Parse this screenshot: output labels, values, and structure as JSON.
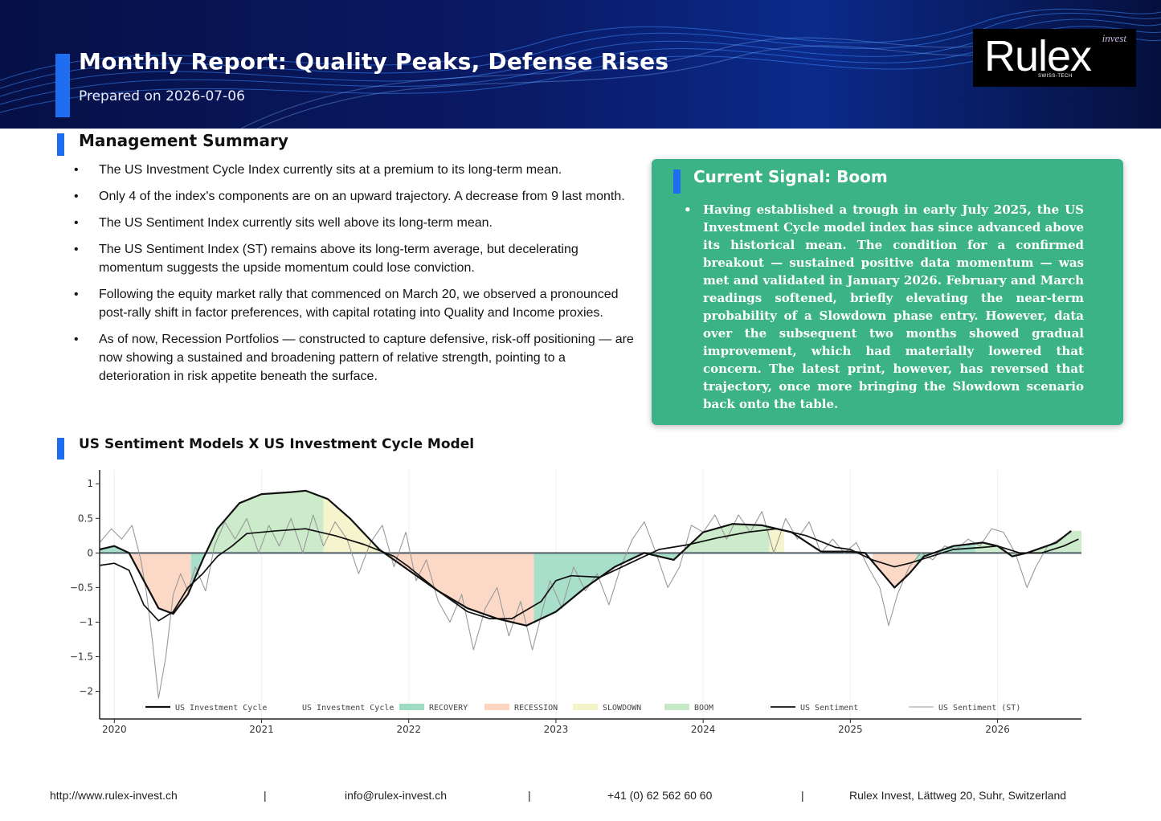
{
  "header": {
    "title": "Monthly Report: Quality Peaks, Defense Rises",
    "date": "Prepared on 2026-07-06",
    "logo": {
      "word": "Rulex",
      "tag": "invest",
      "sub": "SWISS-TECH"
    }
  },
  "summary": {
    "title": "Management Summary",
    "items": [
      "The US Investment Cycle Index currently sits at a premium to its long-term mean.",
      "Only 4 of the index's components are on an upward trajectory. A decrease from 9 last month.",
      "The US Sentiment Index currently sits well above its long-term mean.",
      "The US Sentiment Index (ST) remains above its long-term average, but decelerating momentum suggests the upside momentum could lose conviction.",
      "Following the equity market rally that commenced on March 20, we observed a pronounced post-rally shift in factor preferences, with capital rotating into Quality and Income proxies.",
      "As of now, Recession Portfolios — constructed to capture defensive, risk-off positioning — are now showing a sustained and broadening pattern of relative strength, pointing to a deterioration in risk appetite beneath the surface."
    ]
  },
  "signal": {
    "title": "Current Signal: Boom",
    "text": "Having established a trough in early July 2025, the US Investment Cycle model index has since advanced above its historical mean. The condition for a confirmed breakout — sustained positive data momentum — was met and validated in January 2026. February and March readings softened, briefly elevating the near-term probability of a Slowdown phase entry. However, data over the subsequent two months showed gradual improvement, which had materially lowered that concern. The latest print, however, has reversed that trajectory, once more bringing the Slowdown scenario back onto the table."
  },
  "chart_section": {
    "title": "US Sentiment Models X US Investment Cycle Model"
  },
  "colors": {
    "recovery": "#9fdcc4",
    "recession": "#fcd5c1",
    "slowdown": "#f4f3c8",
    "boom": "#c5e9c5",
    "accent": "#1f6df0",
    "signal_bg": "#3bb387"
  },
  "chart_data": {
    "type": "line",
    "xlabel": "",
    "ylabel": "",
    "xlim": [
      2019.9,
      2026.57
    ],
    "ylim": [
      -2.4,
      1.2
    ],
    "x_ticks": [
      2020,
      2021,
      2022,
      2023,
      2024,
      2025,
      2026
    ],
    "y_ticks": [
      1,
      0.5,
      0,
      -0.5,
      -1,
      -1.5,
      -2
    ],
    "y_tick_labels": [
      "1",
      "0.5",
      "0",
      "−0.5",
      "−1",
      "−1.5",
      "−2"
    ],
    "legend": [
      "US Investment Cycle",
      "US Investment Cycle",
      "RECOVERY",
      "RECESSION",
      "SLOWDOWN",
      "BOOM",
      "US Sentiment",
      "US Sentiment (ST)"
    ],
    "legend_position": "bottom",
    "regimes": [
      {
        "phase": "recovery",
        "start": 2019.9,
        "end": 2020.08
      },
      {
        "phase": "recession",
        "start": 2020.08,
        "end": 2020.52
      },
      {
        "phase": "recovery",
        "start": 2020.52,
        "end": 2020.62
      },
      {
        "phase": "boom",
        "start": 2020.62,
        "end": 2021.42
      },
      {
        "phase": "slowdown",
        "start": 2021.42,
        "end": 2021.88
      },
      {
        "phase": "recession",
        "start": 2021.88,
        "end": 2022.85
      },
      {
        "phase": "recovery",
        "start": 2022.85,
        "end": 2023.85
      },
      {
        "phase": "boom",
        "start": 2023.85,
        "end": 2024.45
      },
      {
        "phase": "slowdown",
        "start": 2024.45,
        "end": 2024.55
      },
      {
        "phase": "recession",
        "start": 2025.15,
        "end": 2025.45
      },
      {
        "phase": "recovery",
        "start": 2025.45,
        "end": 2025.85
      },
      {
        "phase": "boom",
        "start": 2025.85,
        "end": 2026.57
      }
    ],
    "series": [
      {
        "name": "US Investment Cycle",
        "style": "thick",
        "points": [
          [
            2019.9,
            0.05
          ],
          [
            2020.0,
            0.1
          ],
          [
            2020.1,
            0.0
          ],
          [
            2020.2,
            -0.4
          ],
          [
            2020.3,
            -0.8
          ],
          [
            2020.4,
            -0.88
          ],
          [
            2020.5,
            -0.6
          ],
          [
            2020.6,
            -0.1
          ],
          [
            2020.7,
            0.35
          ],
          [
            2020.85,
            0.72
          ],
          [
            2021.0,
            0.85
          ],
          [
            2021.2,
            0.88
          ],
          [
            2021.3,
            0.9
          ],
          [
            2021.45,
            0.78
          ],
          [
            2021.6,
            0.5
          ],
          [
            2021.8,
            0.05
          ],
          [
            2022.0,
            -0.25
          ],
          [
            2022.2,
            -0.55
          ],
          [
            2022.4,
            -0.8
          ],
          [
            2022.6,
            -0.95
          ],
          [
            2022.8,
            -1.05
          ],
          [
            2023.0,
            -0.85
          ],
          [
            2023.2,
            -0.5
          ],
          [
            2023.4,
            -0.2
          ],
          [
            2023.6,
            0.0
          ],
          [
            2023.8,
            -0.1
          ],
          [
            2024.0,
            0.3
          ],
          [
            2024.2,
            0.42
          ],
          [
            2024.4,
            0.4
          ],
          [
            2024.6,
            0.3
          ],
          [
            2024.8,
            0.02
          ],
          [
            2025.0,
            0.02
          ],
          [
            2025.1,
            0.0
          ],
          [
            2025.2,
            -0.25
          ],
          [
            2025.3,
            -0.5
          ],
          [
            2025.4,
            -0.3
          ],
          [
            2025.5,
            -0.05
          ],
          [
            2025.7,
            0.1
          ],
          [
            2025.9,
            0.15
          ],
          [
            2026.0,
            0.1
          ],
          [
            2026.1,
            -0.05
          ],
          [
            2026.2,
            0.0
          ],
          [
            2026.4,
            0.15
          ],
          [
            2026.5,
            0.32
          ]
        ]
      },
      {
        "name": "US Sentiment",
        "style": "medium",
        "points": [
          [
            2019.9,
            -0.18
          ],
          [
            2020.0,
            -0.15
          ],
          [
            2020.1,
            -0.25
          ],
          [
            2020.2,
            -0.75
          ],
          [
            2020.3,
            -0.98
          ],
          [
            2020.4,
            -0.85
          ],
          [
            2020.5,
            -0.5
          ],
          [
            2020.6,
            -0.3
          ],
          [
            2020.7,
            -0.05
          ],
          [
            2020.8,
            0.1
          ],
          [
            2020.9,
            0.28
          ],
          [
            2021.1,
            0.32
          ],
          [
            2021.3,
            0.35
          ],
          [
            2021.5,
            0.25
          ],
          [
            2021.7,
            0.12
          ],
          [
            2021.9,
            -0.05
          ],
          [
            2022.0,
            -0.2
          ],
          [
            2022.2,
            -0.55
          ],
          [
            2022.4,
            -0.85
          ],
          [
            2022.55,
            -0.95
          ],
          [
            2022.7,
            -0.95
          ],
          [
            2022.9,
            -0.7
          ],
          [
            2023.0,
            -0.4
          ],
          [
            2023.1,
            -0.33
          ],
          [
            2023.3,
            -0.35
          ],
          [
            2023.5,
            -0.15
          ],
          [
            2023.7,
            0.05
          ],
          [
            2023.9,
            0.12
          ],
          [
            2024.1,
            0.22
          ],
          [
            2024.3,
            0.3
          ],
          [
            2024.5,
            0.35
          ],
          [
            2024.7,
            0.25
          ],
          [
            2024.9,
            0.08
          ],
          [
            2025.0,
            0.05
          ],
          [
            2025.15,
            -0.1
          ],
          [
            2025.3,
            -0.2
          ],
          [
            2025.4,
            -0.15
          ],
          [
            2025.55,
            -0.05
          ],
          [
            2025.7,
            0.05
          ],
          [
            2025.9,
            0.08
          ],
          [
            2026.0,
            0.1
          ],
          [
            2026.15,
            0.0
          ],
          [
            2026.3,
            0.0
          ],
          [
            2026.45,
            0.1
          ],
          [
            2026.55,
            0.2
          ]
        ]
      },
      {
        "name": "US Sentiment (ST)",
        "style": "thin",
        "points": [
          [
            2019.9,
            0.15
          ],
          [
            2019.98,
            0.35
          ],
          [
            2020.05,
            0.2
          ],
          [
            2020.12,
            0.4
          ],
          [
            2020.18,
            -0.1
          ],
          [
            2020.22,
            -0.6
          ],
          [
            2020.26,
            -1.3
          ],
          [
            2020.3,
            -2.1
          ],
          [
            2020.35,
            -1.5
          ],
          [
            2020.4,
            -0.6
          ],
          [
            2020.45,
            -0.3
          ],
          [
            2020.5,
            -0.55
          ],
          [
            2020.55,
            -0.2
          ],
          [
            2020.62,
            -0.55
          ],
          [
            2020.68,
            0.1
          ],
          [
            2020.75,
            0.45
          ],
          [
            2020.82,
            0.2
          ],
          [
            2020.9,
            0.5
          ],
          [
            2020.98,
            0.0
          ],
          [
            2021.05,
            0.4
          ],
          [
            2021.12,
            0.1
          ],
          [
            2021.2,
            0.5
          ],
          [
            2021.28,
            0.0
          ],
          [
            2021.35,
            0.55
          ],
          [
            2021.42,
            0.1
          ],
          [
            2021.5,
            0.45
          ],
          [
            2021.58,
            0.2
          ],
          [
            2021.66,
            -0.3
          ],
          [
            2021.74,
            0.15
          ],
          [
            2021.82,
            0.4
          ],
          [
            2021.9,
            -0.2
          ],
          [
            2021.98,
            0.3
          ],
          [
            2022.05,
            -0.4
          ],
          [
            2022.12,
            -0.1
          ],
          [
            2022.2,
            -0.7
          ],
          [
            2022.28,
            -1.0
          ],
          [
            2022.36,
            -0.6
          ],
          [
            2022.44,
            -1.4
          ],
          [
            2022.52,
            -0.8
          ],
          [
            2022.6,
            -0.5
          ],
          [
            2022.68,
            -1.2
          ],
          [
            2022.76,
            -0.7
          ],
          [
            2022.84,
            -1.4
          ],
          [
            2022.9,
            -0.9
          ],
          [
            2022.96,
            -0.4
          ],
          [
            2023.04,
            -0.8
          ],
          [
            2023.12,
            -0.2
          ],
          [
            2023.2,
            -0.55
          ],
          [
            2023.28,
            -0.3
          ],
          [
            2023.36,
            -0.75
          ],
          [
            2023.44,
            -0.2
          ],
          [
            2023.52,
            0.2
          ],
          [
            2023.6,
            0.45
          ],
          [
            2023.68,
            0.0
          ],
          [
            2023.76,
            -0.5
          ],
          [
            2023.84,
            -0.2
          ],
          [
            2023.92,
            0.4
          ],
          [
            2024.0,
            0.3
          ],
          [
            2024.08,
            0.55
          ],
          [
            2024.16,
            0.2
          ],
          [
            2024.24,
            0.55
          ],
          [
            2024.32,
            0.3
          ],
          [
            2024.4,
            0.6
          ],
          [
            2024.48,
            0.0
          ],
          [
            2024.56,
            0.5
          ],
          [
            2024.64,
            0.2
          ],
          [
            2024.72,
            0.45
          ],
          [
            2024.8,
            0.0
          ],
          [
            2024.88,
            0.2
          ],
          [
            2024.96,
            0.0
          ],
          [
            2025.04,
            0.15
          ],
          [
            2025.12,
            -0.2
          ],
          [
            2025.2,
            -0.5
          ],
          [
            2025.26,
            -1.05
          ],
          [
            2025.32,
            -0.6
          ],
          [
            2025.4,
            -0.2
          ],
          [
            2025.48,
            0.0
          ],
          [
            2025.56,
            -0.1
          ],
          [
            2025.64,
            0.1
          ],
          [
            2025.72,
            0.05
          ],
          [
            2025.8,
            0.2
          ],
          [
            2025.88,
            0.1
          ],
          [
            2025.96,
            0.35
          ],
          [
            2026.04,
            0.3
          ],
          [
            2026.12,
            0.0
          ],
          [
            2026.2,
            -0.5
          ],
          [
            2026.26,
            -0.2
          ],
          [
            2026.34,
            0.1
          ],
          [
            2026.42,
            0.2
          ],
          [
            2026.5,
            0.3
          ]
        ]
      }
    ]
  },
  "footer": {
    "website": "http://www.rulex-invest.ch",
    "email": "info@rulex-invest.ch",
    "phone": "+41 (0) 62 562 60 60",
    "address": "Rulex Invest, Lättweg 20, Suhr, Switzerland",
    "separator": "|"
  }
}
